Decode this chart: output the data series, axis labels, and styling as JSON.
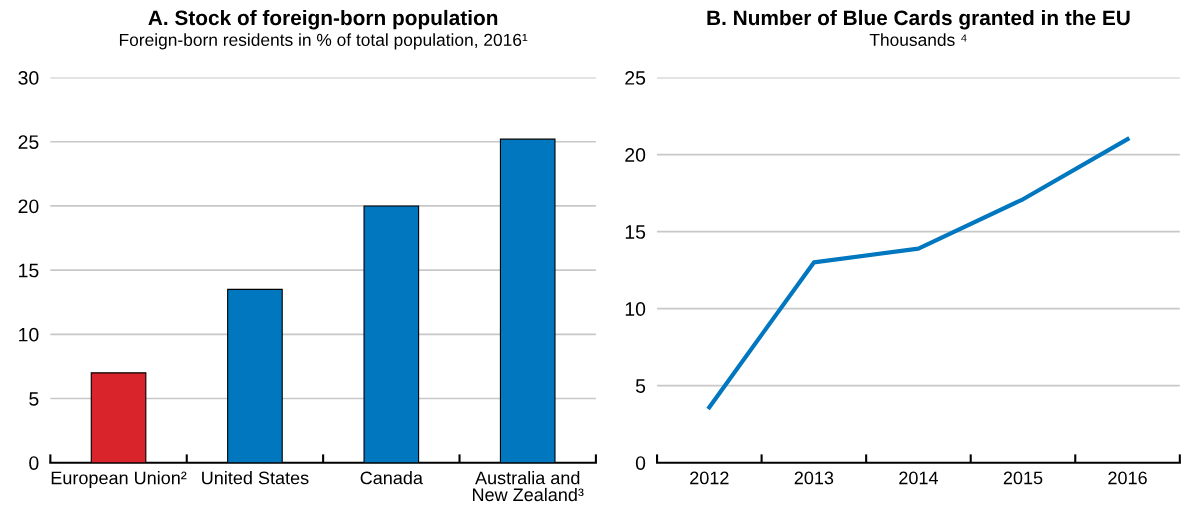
{
  "chart_data": [
    {
      "type": "bar",
      "title": "A. Stock of foreign-born population",
      "subtitle": "Foreign-born residents in % of total population, 2016¹",
      "categories": [
        "European Union²",
        "United States",
        "Canada",
        "Australia and\nNew Zealand³"
      ],
      "values": [
        7.0,
        13.5,
        20.0,
        25.2
      ],
      "colors": [
        "#d9242b",
        "#0077bf",
        "#0077bf",
        "#0077bf"
      ],
      "ylim": [
        0,
        30
      ],
      "yticks": [
        0,
        5,
        10,
        15,
        20,
        25,
        30
      ],
      "grid": "y"
    },
    {
      "type": "line",
      "title": "B. Number of Blue Cards granted in the EU",
      "subtitle": "Thousands ⁴",
      "categories": [
        "2012",
        "2013",
        "2014",
        "2015",
        "2016"
      ],
      "series": [
        {
          "color": "#0077bf",
          "values": [
            3.6,
            13.0,
            13.9,
            17.1,
            21.0
          ]
        }
      ],
      "ylim": [
        0,
        25
      ],
      "yticks": [
        0,
        5,
        10,
        15,
        20,
        25
      ],
      "grid": "y",
      "marker": "none",
      "line_style": "solid"
    }
  ]
}
